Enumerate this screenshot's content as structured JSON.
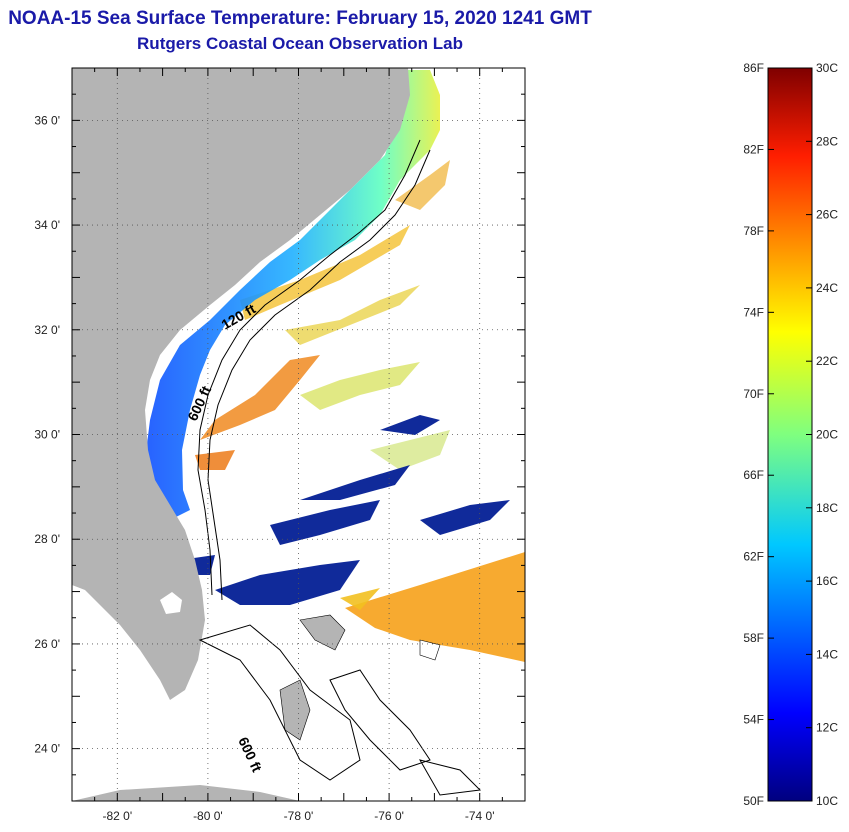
{
  "title": "NOAA-15 Sea Surface Temperature:  February 15, 2020 1241 GMT",
  "subtitle": "Rutgers Coastal Ocean Observation Lab",
  "map": {
    "lon_range": [
      -83,
      -73
    ],
    "lat_range": [
      23,
      37
    ],
    "lon_ticks": [
      {
        "value": -82,
        "label": "-82 0'"
      },
      {
        "value": -80,
        "label": "-80 0'"
      },
      {
        "value": -78,
        "label": "-78 0'"
      },
      {
        "value": -76,
        "label": "-76 0'"
      },
      {
        "value": -74,
        "label": "-74 0'"
      }
    ],
    "lat_ticks": [
      {
        "value": 36,
        "label": "36 0'"
      },
      {
        "value": 34,
        "label": "34 0'"
      },
      {
        "value": 32,
        "label": "32 0'"
      },
      {
        "value": 30,
        "label": "30 0'"
      },
      {
        "value": 28,
        "label": "28 0'"
      },
      {
        "value": 26,
        "label": "26 0'"
      },
      {
        "value": 24,
        "label": "24 0'"
      }
    ],
    "contour_labels": [
      "120 ft",
      "600 ft",
      "600 ft"
    ],
    "land_color": "#b4b4b4",
    "grid": true
  },
  "colorbar": {
    "fahrenheit": [
      "86F",
      "82F",
      "78F",
      "74F",
      "70F",
      "66F",
      "62F",
      "58F",
      "54F",
      "50F"
    ],
    "celsius": [
      "30C",
      "28C",
      "26C",
      "24C",
      "22C",
      "20C",
      "18C",
      "16C",
      "14C",
      "12C",
      "10C"
    ],
    "range_c": [
      10,
      30
    ],
    "colormap": "jet"
  }
}
